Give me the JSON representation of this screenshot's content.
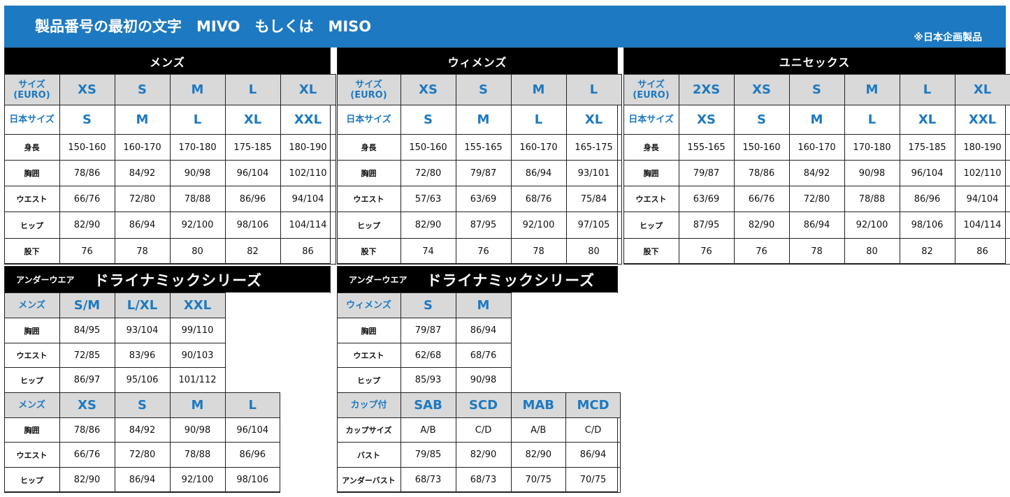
{
  "banner": {
    "title": "製品番号の最初の文字　MIVO　もしくは　MISO",
    "note": "※日本企画製品",
    "color": "#1d79c1"
  },
  "tables": [
    {
      "title": "メンズ",
      "rows": [
        {
          "type": "gray",
          "label": "サイズ\n(EURO)",
          "values": [
            "XS",
            "S",
            "M",
            "L",
            "XL"
          ]
        },
        {
          "type": "blue",
          "label": "日本サイズ",
          "values": [
            "S",
            "M",
            "L",
            "XL",
            "XXL"
          ]
        },
        {
          "label": "身長",
          "values": [
            "150-160",
            "160-170",
            "170-180",
            "175-185",
            "180-190"
          ]
        },
        {
          "label": "胸囲",
          "values": [
            "78/86",
            "84/92",
            "90/98",
            "96/104",
            "102/110"
          ]
        },
        {
          "label": "ウエスト",
          "values": [
            "66/76",
            "72/80",
            "78/88",
            "86/96",
            "94/104"
          ]
        },
        {
          "label": "ヒップ",
          "values": [
            "82/90",
            "86/94",
            "92/100",
            "98/106",
            "104/114"
          ]
        },
        {
          "label": "股下",
          "values": [
            "76",
            "78",
            "80",
            "82",
            "86"
          ]
        }
      ]
    },
    {
      "title": "ウィメンズ",
      "rows": [
        {
          "type": "gray",
          "label": "サイズ\n(EURO)",
          "values": [
            "XS",
            "S",
            "M",
            "L"
          ]
        },
        {
          "type": "blue",
          "label": "日本サイズ",
          "values": [
            "S",
            "M",
            "L",
            "XL"
          ]
        },
        {
          "label": "身長",
          "values": [
            "150-160",
            "155-165",
            "160-170",
            "165-175"
          ]
        },
        {
          "label": "胸囲",
          "values": [
            "72/80",
            "79/87",
            "86/94",
            "93/101"
          ]
        },
        {
          "label": "ウエスト",
          "values": [
            "57/63",
            "63/69",
            "68/76",
            "75/84"
          ]
        },
        {
          "label": "ヒップ",
          "values": [
            "82/90",
            "87/95",
            "92/100",
            "97/105"
          ]
        },
        {
          "label": "股下",
          "values": [
            "74",
            "76",
            "78",
            "80"
          ]
        }
      ]
    },
    {
      "title": "ユニセックス",
      "rows": [
        {
          "type": "gray",
          "label": "サイズ\n(EURO)",
          "values": [
            "2XS",
            "XS",
            "S",
            "M",
            "L",
            "XL"
          ]
        },
        {
          "type": "blue",
          "label": "日本サイズ",
          "values": [
            "XS",
            "S",
            "M",
            "L",
            "XL",
            "XXL"
          ]
        },
        {
          "label": "身長",
          "values": [
            "155-165",
            "150-160",
            "160-170",
            "170-180",
            "175-185",
            "180-190"
          ]
        },
        {
          "label": "胸囲",
          "values": [
            "79/87",
            "78/86",
            "84/92",
            "90/98",
            "96/104",
            "102/110"
          ]
        },
        {
          "label": "ウエスト",
          "values": [
            "63/69",
            "66/76",
            "72/80",
            "78/88",
            "86/96",
            "94/104"
          ]
        },
        {
          "label": "ヒップ",
          "values": [
            "87/95",
            "82/90",
            "86/94",
            "92/100",
            "98/106",
            "104/114"
          ]
        },
        {
          "label": "股下",
          "values": [
            "76",
            "76",
            "78",
            "80",
            "82",
            "86"
          ]
        }
      ]
    },
    {
      "subtitle": "アンダーウエア",
      "title": "ドライナミックシリーズ",
      "rows": [
        {
          "type": "gray",
          "label": "メンズ",
          "values": [
            "S/M",
            "L/XL",
            "XXL"
          ]
        },
        {
          "label": "胸囲",
          "values": [
            "84/95",
            "93/104",
            "99/110"
          ]
        },
        {
          "label": "ウエスト",
          "values": [
            "72/85",
            "83/96",
            "90/103"
          ]
        },
        {
          "label": "ヒップ",
          "values": [
            "86/97",
            "95/106",
            "101/112"
          ]
        },
        {
          "type": "gray",
          "label": "メンズ",
          "values": [
            "XS",
            "S",
            "M",
            "L"
          ]
        },
        {
          "label": "胸囲",
          "values": [
            "78/86",
            "84/92",
            "90/98",
            "96/104"
          ]
        },
        {
          "label": "ウエスト",
          "values": [
            "66/76",
            "72/80",
            "78/88",
            "86/96"
          ]
        },
        {
          "label": "ヒップ",
          "values": [
            "82/90",
            "86/94",
            "92/100",
            "98/106"
          ]
        }
      ]
    },
    {
      "subtitle": "アンダーウエア",
      "title": "ドライナミックシリーズ",
      "rows": [
        {
          "type": "gray",
          "label": "ウィメンズ",
          "values": [
            "S",
            "M"
          ]
        },
        {
          "label": "胸囲",
          "values": [
            "79/87",
            "86/94"
          ]
        },
        {
          "label": "ウエスト",
          "values": [
            "62/68",
            "68/76"
          ]
        },
        {
          "label": "ヒップ",
          "values": [
            "85/93",
            "90/98"
          ]
        },
        {
          "type": "gray",
          "label": "カップ付",
          "values": [
            "SAB",
            "SCD",
            "MAB",
            "MCD"
          ]
        },
        {
          "label": "カップサイズ",
          "values": [
            "A/B",
            "C/D",
            "A/B",
            "C/D"
          ]
        },
        {
          "label": "バスト",
          "values": [
            "79/85",
            "82/90",
            "82/90",
            "86/94"
          ]
        },
        {
          "label": "アンダーバスト",
          "values": [
            "68/73",
            "68/73",
            "70/75",
            "70/75"
          ]
        }
      ]
    }
  ]
}
